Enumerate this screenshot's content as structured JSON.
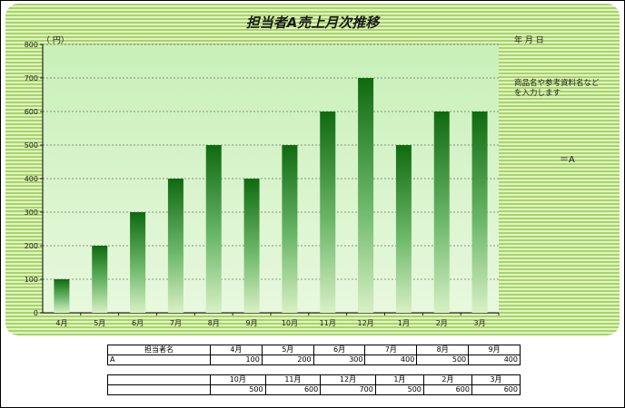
{
  "chart_data": {
    "type": "bar",
    "title": "担当者A売上月次推移",
    "ylabel": "（ 円）",
    "ylim": [
      0,
      800
    ],
    "yticks": [
      0,
      100,
      200,
      300,
      400,
      500,
      600,
      700,
      800
    ],
    "categories": [
      "4月",
      "5月",
      "6月",
      "7月",
      "8月",
      "9月",
      "10月",
      "11月",
      "12月",
      "1月",
      "2月",
      "3月"
    ],
    "series": [
      {
        "values": [
          100,
          200,
          300,
          400,
          500,
          400,
          500,
          600,
          700,
          500,
          600,
          600
        ]
      }
    ],
    "grid": true,
    "colors": {
      "bar_top": "#0f6a0f",
      "bar_bottom": "#d8f0c4",
      "plot_bg": "#d6f5c8",
      "panel_stripe": "#a6d46a"
    }
  },
  "header": {
    "date_label": "年  月  日",
    "note": "商品名や参考資料名など\nを入力します",
    "formula": "＝A"
  },
  "table": {
    "name_header": "担当者名",
    "person": "A",
    "months_h1": [
      "4月",
      "5月",
      "6月",
      "7月",
      "8月",
      "9月"
    ],
    "values_h1": [
      "100",
      "200",
      "300",
      "400",
      "500",
      "400"
    ],
    "months_h2": [
      "10月",
      "11月",
      "12月",
      "1月",
      "2月",
      "3月"
    ],
    "values_h2": [
      "500",
      "600",
      "700",
      "500",
      "600",
      "600"
    ]
  }
}
